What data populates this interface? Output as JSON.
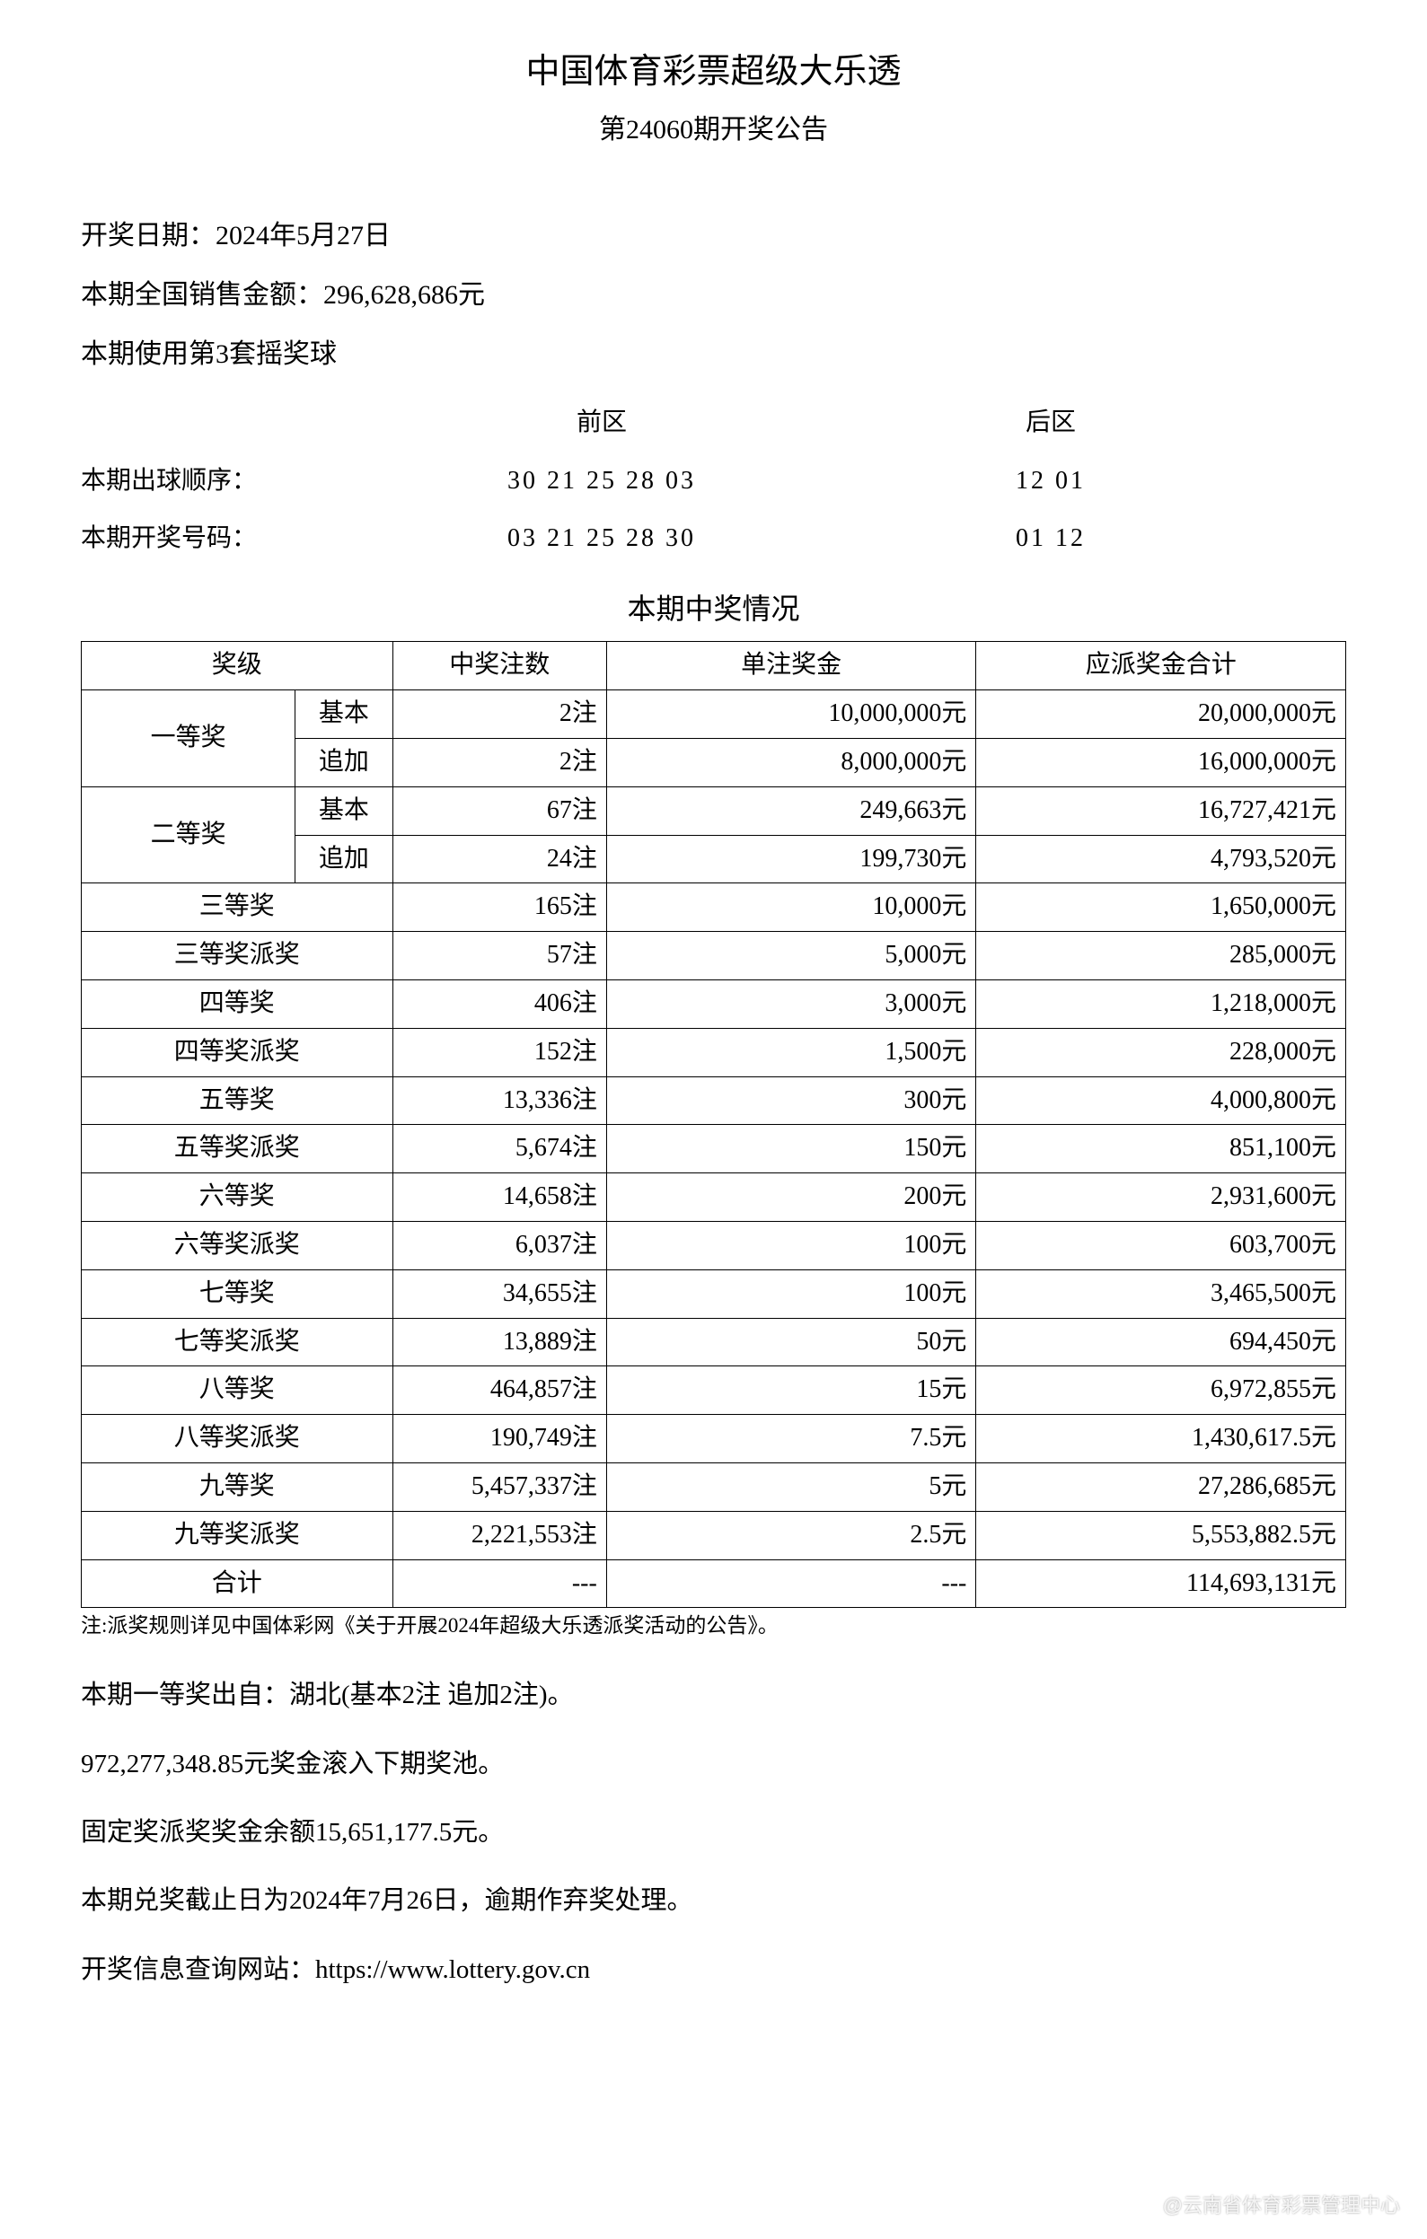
{
  "header": {
    "title": "中国体育彩票超级大乐透",
    "subtitle": "第24060期开奖公告"
  },
  "info": {
    "draw_date_label": "开奖日期：",
    "draw_date": "2024年5月27日",
    "sales_label": "本期全国销售金额：",
    "sales_amount": "296,628,686元",
    "ball_set": "本期使用第3套摇奖球"
  },
  "numbers": {
    "front_header": "前区",
    "back_header": "后区",
    "draw_order_label": "本期出球顺序：",
    "draw_order_front": "30 21 25 28 03",
    "draw_order_back": "12 01",
    "winning_label": "本期开奖号码：",
    "winning_front": "03 21 25 28 30",
    "winning_back": "01 12"
  },
  "prize_section_title": "本期中奖情况",
  "table": {
    "headers": {
      "level": "奖级",
      "count": "中奖注数",
      "per_prize": "单注奖金",
      "total": "应派奖金合计"
    },
    "first_prize": "一等奖",
    "second_prize": "二等奖",
    "basic": "基本",
    "additional": "追加",
    "rows": [
      {
        "count": "2注",
        "per": "10,000,000元",
        "total": "20,000,000元"
      },
      {
        "count": "2注",
        "per": "8,000,000元",
        "total": "16,000,000元"
      },
      {
        "count": "67注",
        "per": "249,663元",
        "total": "16,727,421元"
      },
      {
        "count": "24注",
        "per": "199,730元",
        "total": "4,793,520元"
      },
      {
        "name": "三等奖",
        "count": "165注",
        "per": "10,000元",
        "total": "1,650,000元"
      },
      {
        "name": "三等奖派奖",
        "count": "57注",
        "per": "5,000元",
        "total": "285,000元"
      },
      {
        "name": "四等奖",
        "count": "406注",
        "per": "3,000元",
        "total": "1,218,000元"
      },
      {
        "name": "四等奖派奖",
        "count": "152注",
        "per": "1,500元",
        "total": "228,000元"
      },
      {
        "name": "五等奖",
        "count": "13,336注",
        "per": "300元",
        "total": "4,000,800元"
      },
      {
        "name": "五等奖派奖",
        "count": "5,674注",
        "per": "150元",
        "total": "851,100元"
      },
      {
        "name": "六等奖",
        "count": "14,658注",
        "per": "200元",
        "total": "2,931,600元"
      },
      {
        "name": "六等奖派奖",
        "count": "6,037注",
        "per": "100元",
        "total": "603,700元"
      },
      {
        "name": "七等奖",
        "count": "34,655注",
        "per": "100元",
        "total": "3,465,500元"
      },
      {
        "name": "七等奖派奖",
        "count": "13,889注",
        "per": "50元",
        "total": "694,450元"
      },
      {
        "name": "八等奖",
        "count": "464,857注",
        "per": "15元",
        "total": "6,972,855元"
      },
      {
        "name": "八等奖派奖",
        "count": "190,749注",
        "per": "7.5元",
        "total": "1,430,617.5元"
      },
      {
        "name": "九等奖",
        "count": "5,457,337注",
        "per": "5元",
        "total": "27,286,685元"
      },
      {
        "name": "九等奖派奖",
        "count": "2,221,553注",
        "per": "2.5元",
        "total": "5,553,882.5元"
      },
      {
        "name": "合计",
        "count": "---",
        "per": "---",
        "total": "114,693,131元"
      }
    ]
  },
  "note": "注:派奖规则详见中国体彩网《关于开展2024年超级大乐透派奖活动的公告》。",
  "footer": {
    "first_prize_location": "本期一等奖出自：湖北(基本2注 追加2注)。",
    "rollover": "972,277,348.85元奖金滚入下期奖池。",
    "fixed_prize_balance": "固定奖派奖奖金余额15,651,177.5元。",
    "claim_deadline": "本期兑奖截止日为2024年7月26日，逾期作弃奖处理。",
    "website": "开奖信息查询网站：https://www.lottery.gov.cn"
  },
  "watermark": "@云南省体育彩票管理中心"
}
